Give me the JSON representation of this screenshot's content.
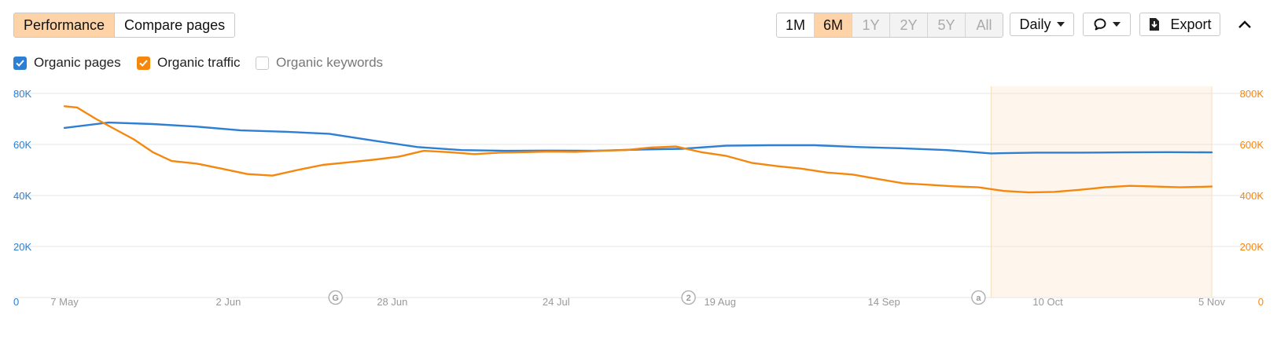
{
  "tabs": [
    {
      "label": "Performance",
      "active": true
    },
    {
      "label": "Compare pages",
      "active": false
    }
  ],
  "ranges": [
    {
      "label": "1M",
      "state": "normal"
    },
    {
      "label": "6M",
      "state": "active"
    },
    {
      "label": "1Y",
      "state": "disabled"
    },
    {
      "label": "2Y",
      "state": "disabled"
    },
    {
      "label": "5Y",
      "state": "disabled"
    },
    {
      "label": "All",
      "state": "disabled"
    }
  ],
  "toolbar": {
    "interval_label": "Daily",
    "export_label": "Export"
  },
  "icons": {
    "comment": "comment-icon",
    "export": "download-icon",
    "collapse": "chevron-up-icon"
  },
  "legend": [
    {
      "label": "Organic pages",
      "checked": true,
      "color": "#2d7fd3"
    },
    {
      "label": "Organic traffic",
      "checked": true,
      "color": "#f5870f"
    },
    {
      "label": "Organic keywords",
      "checked": false,
      "color": "#cccccc"
    }
  ],
  "chart_data": {
    "type": "line",
    "x_range": [
      "2024-05-07",
      "2024-11-05"
    ],
    "x_ticks": [
      "7 May",
      "2 Jun",
      "28 Jun",
      "24 Jul",
      "19 Aug",
      "14 Sep",
      "10 Oct",
      "5 Nov"
    ],
    "y_left": {
      "min": 0,
      "max": 90000,
      "ticks": [
        "0",
        "20K",
        "40K",
        "60K",
        "80K"
      ],
      "color": "#2d7fd3"
    },
    "y_right": {
      "min": 0,
      "max": 900000,
      "ticks": [
        "0",
        "200K",
        "400K",
        "600K",
        "800K"
      ],
      "color": "#f5870f"
    },
    "highlight_range": [
      "2024-10-01",
      "2024-11-05"
    ],
    "annotations": [
      {
        "date": "2024-06-19",
        "label": "G"
      },
      {
        "date": "2024-08-14",
        "label": "2"
      },
      {
        "date": "2024-09-29",
        "label": "a"
      }
    ],
    "series": [
      {
        "name": "Organic pages",
        "axis": "left",
        "color": "#2d7fd3",
        "x": [
          "2024-05-07",
          "2024-05-14",
          "2024-05-21",
          "2024-05-28",
          "2024-06-04",
          "2024-06-11",
          "2024-06-18",
          "2024-06-25",
          "2024-07-02",
          "2024-07-09",
          "2024-07-16",
          "2024-07-23",
          "2024-07-30",
          "2024-08-06",
          "2024-08-13",
          "2024-08-20",
          "2024-08-27",
          "2024-09-03",
          "2024-09-10",
          "2024-09-17",
          "2024-09-24",
          "2024-10-01",
          "2024-10-08",
          "2024-10-15",
          "2024-10-22",
          "2024-10-29",
          "2024-11-05"
        ],
        "y": [
          66500,
          68600,
          68000,
          67000,
          65500,
          65000,
          64200,
          61500,
          59000,
          57800,
          57500,
          57600,
          57500,
          58000,
          58300,
          59500,
          59700,
          59700,
          59000,
          58500,
          57800,
          56500,
          56800,
          56800,
          56900,
          57000,
          56900
        ]
      },
      {
        "name": "Organic traffic",
        "axis": "right",
        "color": "#f5870f",
        "x": [
          "2024-05-07",
          "2024-05-09",
          "2024-05-12",
          "2024-05-15",
          "2024-05-18",
          "2024-05-21",
          "2024-05-24",
          "2024-05-28",
          "2024-06-01",
          "2024-06-05",
          "2024-06-09",
          "2024-06-13",
          "2024-06-17",
          "2024-06-21",
          "2024-06-25",
          "2024-06-29",
          "2024-07-03",
          "2024-07-07",
          "2024-07-11",
          "2024-07-15",
          "2024-07-19",
          "2024-07-23",
          "2024-07-27",
          "2024-07-31",
          "2024-08-04",
          "2024-08-08",
          "2024-08-12",
          "2024-08-16",
          "2024-08-20",
          "2024-08-24",
          "2024-08-28",
          "2024-09-01",
          "2024-09-05",
          "2024-09-09",
          "2024-09-13",
          "2024-09-17",
          "2024-09-21",
          "2024-09-25",
          "2024-09-29",
          "2024-10-03",
          "2024-10-07",
          "2024-10-11",
          "2024-10-15",
          "2024-10-19",
          "2024-10-23",
          "2024-10-27",
          "2024-10-31",
          "2024-11-05"
        ],
        "y": [
          750000,
          745000,
          700000,
          660000,
          620000,
          570000,
          535000,
          525000,
          505000,
          484000,
          478000,
          500000,
          520000,
          530000,
          540000,
          552000,
          575000,
          570000,
          562000,
          568000,
          570000,
          572000,
          571000,
          575000,
          578000,
          588000,
          592000,
          570000,
          555000,
          528000,
          515000,
          505000,
          490000,
          482000,
          465000,
          448000,
          442000,
          436000,
          432000,
          418000,
          412000,
          414000,
          422000,
          432000,
          438000,
          435000,
          432000,
          435000
        ]
      }
    ]
  }
}
